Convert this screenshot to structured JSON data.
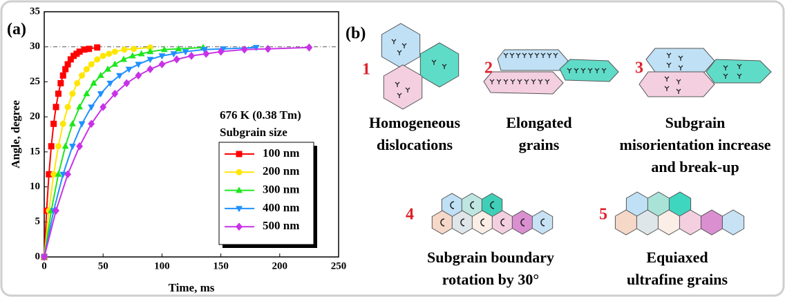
{
  "chart_data": {
    "type": "line",
    "panel_label": "(a)",
    "xlabel": "Time, ms",
    "ylabel": "Angle, degree",
    "xlim": [
      0,
      250
    ],
    "xticks": [
      0,
      50,
      100,
      150,
      200,
      250
    ],
    "ylim": [
      0,
      35
    ],
    "yticks": [
      0,
      5,
      10,
      15,
      20,
      25,
      30,
      35
    ],
    "reference_line": 30,
    "annotations": [
      "676 K (0.38 Tm)",
      "Subgrain size"
    ],
    "series": [
      {
        "name": "100 nm",
        "color": "#ff0000",
        "marker": "square",
        "x": [
          0,
          2,
          4,
          6,
          8,
          10,
          12,
          14,
          16,
          18,
          20,
          22.5,
          25,
          27.5,
          30,
          34,
          38,
          45
        ],
        "values": [
          0,
          6.6,
          11.8,
          15.8,
          19.0,
          21.4,
          23.3,
          24.8,
          25.9,
          26.8,
          27.5,
          28.2,
          28.7,
          29.0,
          29.3,
          29.6,
          29.7,
          29.9
        ]
      },
      {
        "name": "200 nm",
        "color": "#ffe600",
        "marker": "circle",
        "x": [
          0,
          4,
          8,
          12,
          16,
          20,
          24,
          28,
          32,
          36,
          40,
          45,
          50,
          55,
          60,
          68,
          76,
          90
        ],
        "values": [
          0,
          6.6,
          11.8,
          15.8,
          19.0,
          21.4,
          23.3,
          24.8,
          25.9,
          26.8,
          27.5,
          28.2,
          28.7,
          29.0,
          29.3,
          29.6,
          29.7,
          29.9
        ]
      },
      {
        "name": "300 nm",
        "color": "#1ee61e",
        "marker": "triangle-up",
        "x": [
          0,
          6,
          12,
          18,
          24,
          30,
          36,
          42,
          48,
          54,
          60,
          67.5,
          75,
          82.5,
          90,
          102,
          114,
          135
        ],
        "values": [
          0,
          6.6,
          11.8,
          15.8,
          19.0,
          21.4,
          23.3,
          24.8,
          25.9,
          26.8,
          27.5,
          28.2,
          28.7,
          29.0,
          29.3,
          29.6,
          29.7,
          29.9
        ]
      },
      {
        "name": "400 nm",
        "color": "#1e90ff",
        "marker": "triangle-down",
        "x": [
          0,
          8,
          16,
          24,
          32,
          40,
          48,
          56,
          64,
          72,
          80,
          90,
          100,
          110,
          120,
          136,
          152,
          180
        ],
        "values": [
          0,
          6.6,
          11.8,
          15.8,
          19.0,
          21.4,
          23.3,
          24.8,
          25.9,
          26.8,
          27.5,
          28.2,
          28.7,
          29.0,
          29.3,
          29.6,
          29.7,
          29.9
        ]
      },
      {
        "name": "500 nm",
        "color": "#c832e6",
        "marker": "diamond",
        "x": [
          0,
          10,
          20,
          30,
          40,
          50,
          60,
          70,
          80,
          90,
          100,
          112.5,
          125,
          137.5,
          150,
          170,
          190,
          225
        ],
        "values": [
          0,
          6.6,
          11.8,
          15.8,
          19.0,
          21.4,
          23.3,
          24.8,
          25.9,
          26.8,
          27.5,
          28.2,
          28.7,
          29.0,
          29.3,
          29.6,
          29.7,
          29.9
        ]
      }
    ]
  },
  "diagram": {
    "panel_label": "(b)",
    "steps": [
      {
        "number": "1",
        "label": [
          "Homogeneous",
          "dislocations"
        ]
      },
      {
        "number": "2",
        "label": [
          "Elongated",
          "grains"
        ]
      },
      {
        "number": "3",
        "label": [
          "Subgrain",
          "misorientation increase",
          "and break-up"
        ]
      },
      {
        "number": "4",
        "label": [
          "Subgrain boundary",
          "rotation by 30°"
        ]
      },
      {
        "number": "5",
        "label": [
          "Equiaxed",
          "ultrafine grains"
        ]
      }
    ]
  }
}
